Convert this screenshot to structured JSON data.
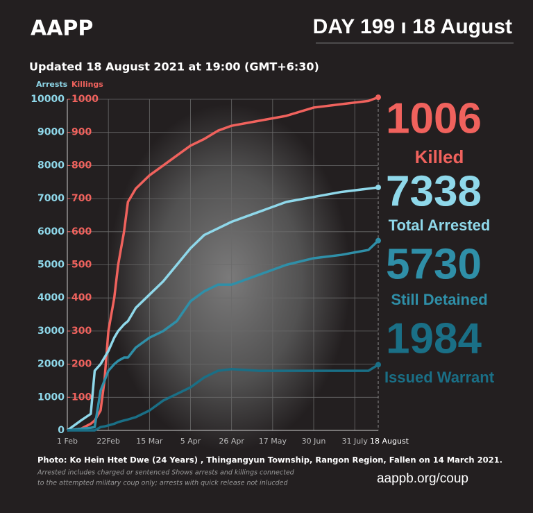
{
  "chart_data": {
    "type": "line",
    "title": "AAPP",
    "header_right": "DAY 199 ı 18 August",
    "subtitle": "Updated 18 August 2021 at 19:00 (GMT+6:30)",
    "y_label": "Arrests",
    "y2_label": "Killings",
    "x": [
      0,
      7,
      12,
      14,
      17,
      19,
      21,
      24,
      26,
      29,
      31,
      35,
      42,
      49,
      56,
      63,
      70,
      77,
      84,
      98,
      112,
      126,
      140,
      154,
      159
    ],
    "xlim": [
      0,
      159
    ],
    "xticks": [
      {
        "value": 0,
        "label": "1 Feb"
      },
      {
        "value": 21,
        "label": "22Feb"
      },
      {
        "value": 42,
        "label": "15 Mar"
      },
      {
        "value": 63,
        "label": "5 Apr"
      },
      {
        "value": 84,
        "label": "26 Apr"
      },
      {
        "value": 105,
        "label": "17 May"
      },
      {
        "value": 126,
        "label": "30 Jun"
      },
      {
        "value": 147,
        "label": "31 July"
      },
      {
        "value": 159,
        "label": "18 August"
      }
    ],
    "ylim": [
      0,
      10000
    ],
    "yticks": [
      0,
      1000,
      2000,
      3000,
      4000,
      5000,
      6000,
      7000,
      8000,
      9000,
      10000
    ],
    "y2lim": [
      0,
      1000
    ],
    "y2ticks": [
      100,
      200,
      300,
      400,
      500,
      600,
      700,
      800,
      900,
      1000
    ],
    "grid": true,
    "series": [
      {
        "name": "Killed",
        "color": "#f0625d",
        "axis": "y2",
        "values": [
          0,
          5,
          20,
          30,
          60,
          150,
          300,
          400,
          500,
          600,
          690,
          730,
          770,
          800,
          830,
          860,
          880,
          905,
          920,
          935,
          950,
          975,
          985,
          995,
          1006
        ]
      },
      {
        "name": "Total Arrested",
        "color": "#8fd8ea",
        "values": [
          0,
          300,
          500,
          1800,
          2000,
          2200,
          2400,
          2800,
          3000,
          3200,
          3300,
          3700,
          4100,
          4500,
          5000,
          5500,
          5900,
          6100,
          6300,
          6600,
          6900,
          7050,
          7200,
          7300,
          7338
        ]
      },
      {
        "name": "Still Detained",
        "color": "#2f8fa8",
        "values": [
          0,
          50,
          80,
          100,
          1200,
          1500,
          1800,
          2000,
          2100,
          2200,
          2200,
          2500,
          2800,
          3000,
          3300,
          3900,
          4200,
          4400,
          4400,
          4700,
          5000,
          5200,
          5300,
          5450,
          5730
        ]
      },
      {
        "name": "Issued Warrant",
        "color": "#1a6f86",
        "values": [
          0,
          0,
          0,
          0,
          100,
          120,
          150,
          200,
          250,
          300,
          330,
          400,
          600,
          900,
          1100,
          1300,
          1600,
          1800,
          1850,
          1800,
          1800,
          1800,
          1800,
          1800,
          1984
        ]
      }
    ],
    "photo_credit": "Photo:   Ko Hein Htet Dwe (24 Years) , Thingangyun Township, Rangon Region, Fallen on 14 March 2021.",
    "notes": [
      "Arrested includes charged or sentenced Shows arrests and killings connected",
      "to the attempted military coup only; arrests with quick release not inlucded"
    ],
    "source": "aappb.org/coup"
  }
}
